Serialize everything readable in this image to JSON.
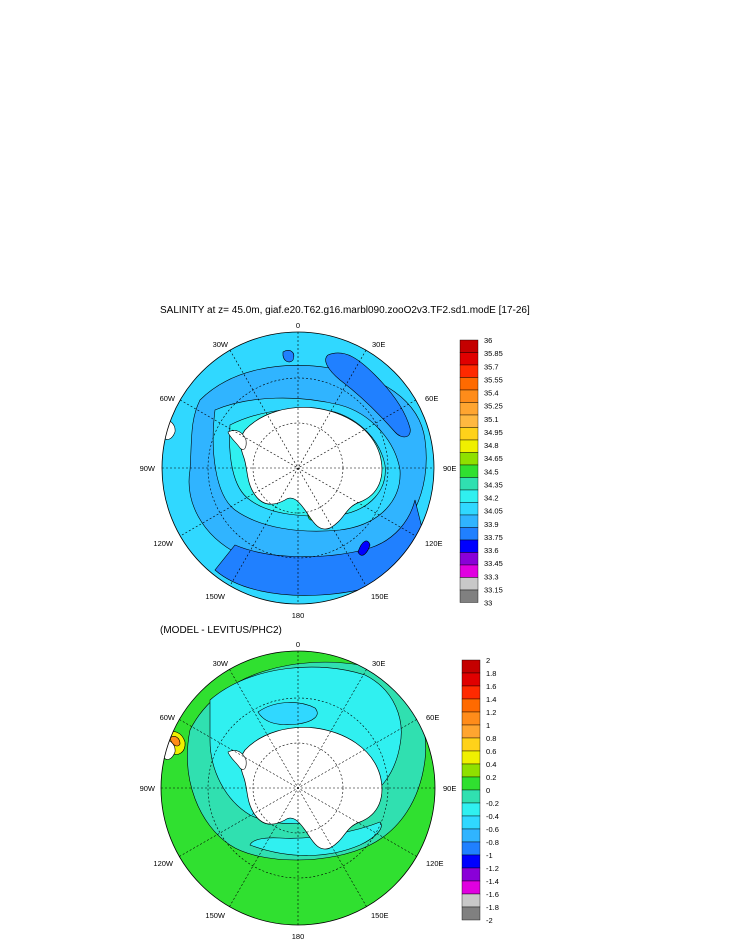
{
  "panel1": {
    "title": "SALINITY at z=  45.0m, giaf.e20.T62.g16.marbl090.zooO2v3.TF2.sd1.modE [17-26]",
    "lon_labels": [
      "0",
      "30E",
      "60E",
      "90E",
      "120E",
      "150E",
      "180",
      "150W",
      "120W",
      "90W",
      "60W",
      "30W"
    ],
    "colorbar": {
      "labels": [
        "36",
        "35.85",
        "35.7",
        "35.55",
        "35.4",
        "35.25",
        "35.1",
        "34.95",
        "34.8",
        "34.65",
        "34.5",
        "34.35",
        "34.2",
        "34.05",
        "33.9",
        "33.75",
        "33.6",
        "33.45",
        "33.3",
        "33.15",
        "33"
      ],
      "colors": [
        "#c40000",
        "#e00000",
        "#ff2a00",
        "#ff6a00",
        "#ff8c1a",
        "#ffa530",
        "#ffb840",
        "#ffd21a",
        "#f0f000",
        "#8fe000",
        "#30e030",
        "#30e0b0",
        "#30f0f0",
        "#30d8ff",
        "#30b4ff",
        "#2080ff",
        "#0000ff",
        "#8a00d8",
        "#e000e0",
        "#c8c8c8",
        "#808080"
      ]
    }
  },
  "panel2": {
    "title": "(MODEL - LEVITUS/PHC2)",
    "lon_labels": [
      "0",
      "30E",
      "60E",
      "90E",
      "120E",
      "150E",
      "180",
      "150W",
      "120W",
      "90W",
      "60W",
      "30W"
    ],
    "colorbar": {
      "labels": [
        "2",
        "1.8",
        "1.6",
        "1.4",
        "1.2",
        "1",
        "0.8",
        "0.6",
        "0.4",
        "0.2",
        "0",
        "-0.2",
        "-0.4",
        "-0.6",
        "-0.8",
        "-1",
        "-1.2",
        "-1.4",
        "-1.6",
        "-1.8",
        "-2"
      ],
      "colors": [
        "#c40000",
        "#e00000",
        "#ff2a00",
        "#ff6a00",
        "#ff8c1a",
        "#ffa530",
        "#ffd21a",
        "#f0f000",
        "#8fe000",
        "#30e030",
        "#30e0b0",
        "#30f0f0",
        "#30d8ff",
        "#30b4ff",
        "#2080ff",
        "#0000ff",
        "#8a00d8",
        "#e000e0",
        "#c8c8c8",
        "#808080"
      ]
    }
  },
  "colors": {
    "land": "#ffffff",
    "p1_base": "#30d8ff",
    "p1_mid": "#30b4ff",
    "p1_deep": "#2080ff",
    "p1_low": "#0000ff",
    "p1_green": "#30e030",
    "p2_base": "#30e030",
    "p2_cyan": "#30f0f0",
    "p2_teal": "#30e0b0",
    "p2_blue": "#30d8ff",
    "p2_orange": "#ff8c1a",
    "p2_yellow": "#f0f000"
  }
}
